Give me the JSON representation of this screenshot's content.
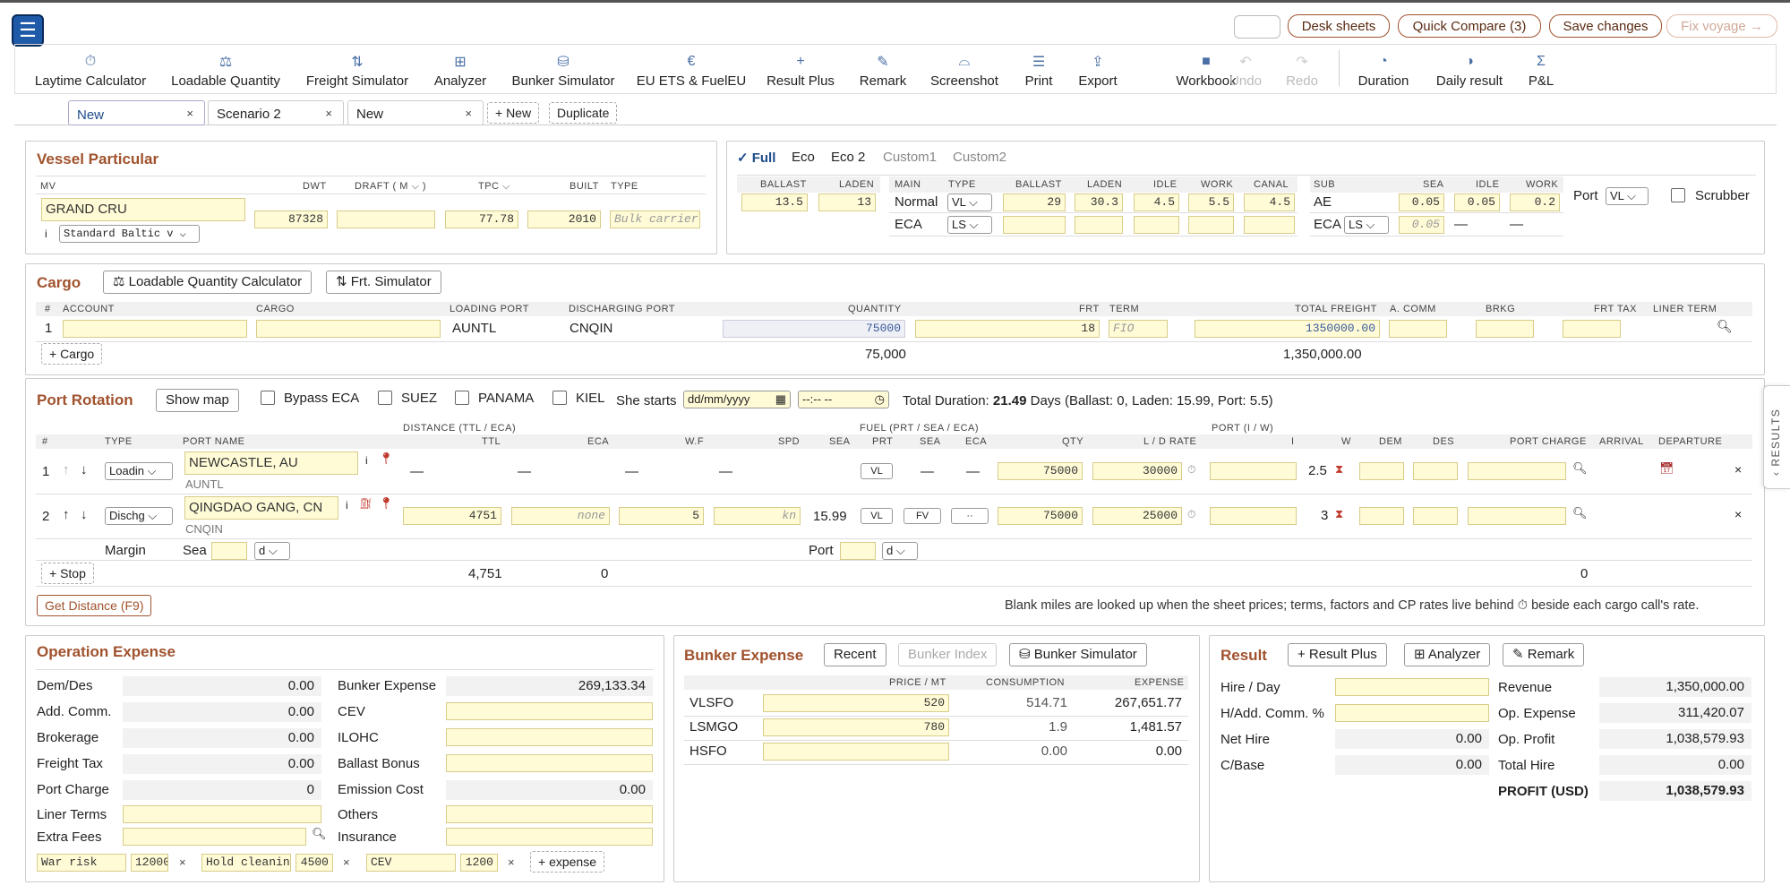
{
  "topbar": {
    "desk_sheets": "Desk sheets",
    "quick_compare": "Quick Compare (3)",
    "save_changes": "Save changes",
    "fix_voyage": "Fix voyage →"
  },
  "toolbar": [
    {
      "label": "Laytime Calculator",
      "icon": "stopwatch-icon",
      "glyph": "⏱"
    },
    {
      "label": "Loadable Quantity",
      "icon": "scale-icon",
      "glyph": "⚖"
    },
    {
      "label": "Freight Simulator",
      "icon": "swap-vertical-icon",
      "glyph": "⇅"
    },
    {
      "label": "Analyzer",
      "icon": "grid-icon",
      "glyph": "⊞"
    },
    {
      "label": "Bunker Simulator",
      "icon": "database-icon",
      "glyph": "⛁"
    },
    {
      "label": "EU ETS & FuelEU",
      "icon": "euro-icon",
      "glyph": "€"
    },
    {
      "label": "Result Plus",
      "icon": "plus-icon",
      "glyph": "+"
    },
    {
      "label": "Remark",
      "icon": "pencil-icon",
      "glyph": "✎"
    },
    {
      "label": "Screenshot",
      "icon": "camera-icon",
      "glyph": "⌓"
    },
    {
      "label": "Print",
      "icon": "print-icon",
      "glyph": "☰"
    },
    {
      "label": "Export",
      "icon": "export-icon",
      "glyph": "⇪"
    },
    {
      "label": "Workbook",
      "icon": "workbook-icon",
      "glyph": "■"
    },
    {
      "label": "Undo",
      "icon": "undo-icon",
      "glyph": "↶"
    },
    {
      "label": "Redo",
      "icon": "redo-icon",
      "glyph": "↷"
    },
    {
      "label": "Duration",
      "icon": "pie-icon",
      "glyph": "◔"
    },
    {
      "label": "Daily result",
      "icon": "half-circle-icon",
      "glyph": "◑"
    },
    {
      "label": "P&L",
      "icon": "sigma-icon",
      "glyph": "Σ"
    }
  ],
  "tabs": [
    {
      "label": "New"
    },
    {
      "label": "Scenario 2"
    },
    {
      "label": "New"
    }
  ],
  "tab_actions": {
    "new": "+ New",
    "duplicate": "Duplicate"
  },
  "vessel": {
    "title": "Vessel Particular",
    "h_mv": "MV",
    "h_dwt": "DWT",
    "h_draft": "DRAFT ( M ⌵ )",
    "h_tpc": "TPC ⌵",
    "h_built": "BUILT",
    "h_type": "TYPE",
    "mv": "GRAND CRU",
    "dwt": "87328",
    "tpc": "77.78",
    "built": "2010",
    "type_ph": "Bulk carrier",
    "info": "i",
    "baltic": "Standard Baltic v ⌵"
  },
  "speed": {
    "full": "✓ Full",
    "eco": "Eco",
    "eco2": "Eco 2",
    "custom1": "Custom1",
    "custom2": "Custom2",
    "h_ballast": "BALLAST",
    "h_laden": "LADEN",
    "ballast": "13.5",
    "laden": "13",
    "h_main": "MAIN",
    "h_type": "TYPE",
    "h_ball": "BALLAST",
    "h_lad": "LADEN",
    "h_idle": "IDLE",
    "h_work": "WORK",
    "h_canal": "CANAL",
    "normal": "Normal",
    "normal_type": "VL ⌵",
    "n_ballast": "29",
    "n_laden": "30.3",
    "n_idle": "4.5",
    "n_work": "5.5",
    "n_canal": "4.5",
    "eca": "ECA",
    "eca_type": "LS ⌵",
    "h_sub": "SUB",
    "h_sea": "SEA",
    "h_sidle": "IDLE",
    "h_swork": "WORK",
    "ae": "AE",
    "ae_sea": "0.05",
    "ae_idle": "0.05",
    "ae_work": "0.2",
    "eca2": "ECA",
    "eca2_type": "LS ⌵",
    "eca2_sea": "0.05",
    "dash": "—",
    "port": "Port",
    "port_type": "VL ⌵",
    "scrubber": "Scrubber"
  },
  "cargo": {
    "title": "Cargo",
    "lq_btn": "⚖ Loadable Quantity Calculator",
    "frt_btn": "⇅ Frt. Simulator",
    "h_no": "#",
    "h_account": "ACCOUNT",
    "h_cargo": "CARGO",
    "h_lp": "LOADING PORT",
    "h_dp": "DISCHARGING PORT",
    "h_qty": "QUANTITY",
    "h_frt": "FRT",
    "h_term": "TERM",
    "h_tf": "TOTAL FREIGHT",
    "h_acomm": "A. COMM",
    "h_brkg": "BRKG",
    "h_frttax": "FRT TAX",
    "h_liner": "LINER TERM",
    "row": {
      "no": "1",
      "lp": "AUNTL",
      "dp": "CNQIN",
      "qty": "75000",
      "frt": "18",
      "term": "FIO",
      "tf": "1350000.00"
    },
    "add": "+ Cargo",
    "total_qty": "75,000",
    "total_frt": "1,350,000.00"
  },
  "rotation": {
    "title": "Port Rotation",
    "show_map": "Show map",
    "bypass": "Bypass ECA",
    "suez": "SUEZ",
    "panama": "PANAMA",
    "kiel": "KIEL",
    "she_starts": "She starts",
    "date_ph": "dd/mm/yyyy",
    "time_ph": "--:-- --",
    "total_dur_label": "Total Duration:",
    "total_dur": "21.49",
    "total_dur_rest": "Days (Ballast: 0, Laden: 15.99, Port: 5.5)",
    "h_no": "#",
    "h_type": "TYPE",
    "h_port": "PORT NAME",
    "h_dist": "DISTANCE (TTL / ECA)",
    "h_ttl": "TTL",
    "h_eca": "ECA",
    "h_wf": "W.F",
    "h_spd": "SPD",
    "h_sea": "SEA",
    "h_fuel": "FUEL (PRT / SEA / ECA)",
    "h_prt": "PRT",
    "h_fsea": "SEA",
    "h_feca": "ECA",
    "h_qty": "QTY",
    "h_ld": "L / D RATE",
    "h_portiw": "PORT (I / W)",
    "h_i": "I",
    "h_w": "W",
    "h_dem": "DEM",
    "h_des": "DES",
    "h_pc": "PORT CHARGE",
    "h_arr": "ARRIVAL",
    "h_dep": "DEPARTURE",
    "r1": {
      "no": "1",
      "type": "Loadin ⌵",
      "port": "NEWCASTLE, AU",
      "code": "AUNTL",
      "dash": "—",
      "prt": "VL",
      "qty": "75000",
      "rate": "30000",
      "w": "2.5"
    },
    "r2": {
      "no": "2",
      "type": "Dischg ⌵",
      "port": "QINGDAO GANG, CN",
      "code": "CNQIN",
      "ttl": "4751",
      "eca_ph": "none",
      "wf": "5",
      "spd_ph": "kn",
      "sea": "15.99",
      "prt": "VL",
      "fsea": "FV",
      "feca": "··",
      "qty": "75000",
      "rate": "25000",
      "w": "3"
    },
    "margin": "Margin",
    "sea": "Sea",
    "d": "d ⌵",
    "port": "Port",
    "add_stop": "+ Stop",
    "sum_ttl": "4,751",
    "sum_eca": "0",
    "sum_pc": "0",
    "get_distance": "Get Distance (F9)",
    "note": "Blank miles are looked up when the sheet prices; terms, factors and CP rates live behind ⏱ beside each cargo call's rate.",
    "results_tab": "‹ RESULTS"
  },
  "opex": {
    "title": "Operation Expense",
    "demdes": "Dem/Des",
    "demdes_v": "0.00",
    "addcomm": "Add. Comm.",
    "addcomm_v": "0.00",
    "brokerage": "Brokerage",
    "brokerage_v": "0.00",
    "frttax": "Freight Tax",
    "frttax_v": "0.00",
    "portcharge": "Port Charge",
    "portcharge_v": "0",
    "liner": "Liner Terms",
    "extra": "Extra Fees",
    "bunker": "Bunker Expense",
    "bunker_v": "269,133.34",
    "cev": "CEV",
    "ilohc": "ILOHC",
    "ballast": "Ballast Bonus",
    "emission": "Emission Cost",
    "emission_v": "0.00",
    "others": "Others",
    "insurance": "Insurance",
    "e1": "War risk",
    "e1v": "12000",
    "e2": "Hold cleaning",
    "e2v": "4500",
    "e3": "CEV",
    "e3v": "1200",
    "add": "+ expense"
  },
  "bunker": {
    "title": "Bunker Expense",
    "recent": "Recent",
    "index": "Bunker Index",
    "sim": "⛁ Bunker Simulator",
    "h_price": "PRICE / MT",
    "h_cons": "CONSUMPTION",
    "h_exp": "EXPENSE",
    "rows": [
      {
        "name": "VLSFO",
        "price": "520",
        "cons": "514.71",
        "exp": "267,651.77"
      },
      {
        "name": "LSMGO",
        "price": "780",
        "cons": "1.9",
        "exp": "1,481.57"
      },
      {
        "name": "HSFO",
        "price": "",
        "cons": "0.00",
        "exp": "0.00"
      }
    ]
  },
  "result": {
    "title": "Result",
    "plus": "+ Result Plus",
    "analyzer": "⊞ Analyzer",
    "remark": "✎ Remark",
    "hire": "Hire / Day",
    "hadd": "H/Add. Comm. %",
    "nethire": "Net Hire",
    "nethire_v": "0.00",
    "cbase": "C/Base",
    "cbase_v": "0.00",
    "revenue": "Revenue",
    "revenue_v": "1,350,000.00",
    "opexp": "Op. Expense",
    "opexp_v": "311,420.07",
    "opprofit": "Op. Profit",
    "opprofit_v": "1,038,579.93",
    "totalhire": "Total Hire",
    "totalhire_v": "0.00",
    "profit": "PROFIT (USD)",
    "profit_v": "1,038,579.93"
  }
}
